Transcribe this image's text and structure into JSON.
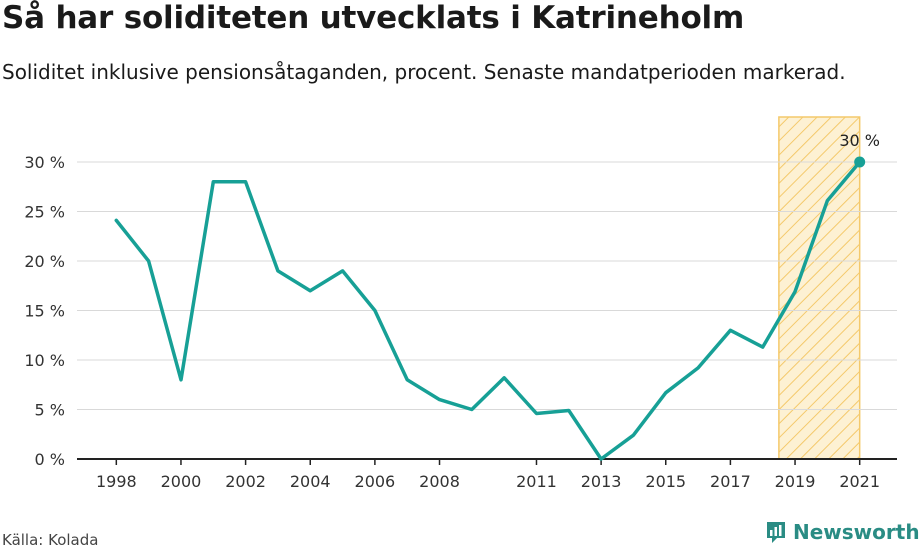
{
  "title": "Så har soliditeten utvecklats i Katrineholm",
  "subtitle": "Soliditet inklusive pensionsåtaganden, procent. Senaste mandatperioden markerad.",
  "source": "Källa: Kolada",
  "brand": "Newsworthy",
  "colors": {
    "line": "#17a096",
    "highlight_fill": "#fbe7b4",
    "highlight_stroke": "#f4c96b",
    "grid": "#d9d9d9",
    "axis": "#222222",
    "brand": "#2a8c84"
  },
  "chart_data": {
    "type": "line",
    "title": "Så har soliditeten utvecklats i Katrineholm",
    "subtitle": "Soliditet inklusive pensionsåtaganden, procent. Senaste mandatperioden markerad.",
    "x": [
      1998,
      1999,
      2000,
      2001,
      2002,
      2003,
      2004,
      2005,
      2006,
      2007,
      2008,
      2009,
      2010,
      2011,
      2012,
      2013,
      2014,
      2015,
      2016,
      2017,
      2018,
      2019,
      2020,
      2021
    ],
    "series": [
      {
        "values": [
          24.1,
          20.0,
          8.0,
          28.0,
          28.0,
          19.0,
          17.0,
          19.0,
          15.0,
          8.0,
          6.0,
          5.0,
          8.2,
          4.6,
          4.9,
          0.0,
          2.4,
          6.7,
          9.2,
          13.0,
          11.3,
          16.9,
          26.1,
          30.0
        ]
      }
    ],
    "x_tick_labels": [
      "1998",
      "2000",
      "2002",
      "2004",
      "2006",
      "2008",
      "2011",
      "2013",
      "2015",
      "2017",
      "2019",
      "2021"
    ],
    "y_ticks": [
      0,
      5,
      10,
      15,
      20,
      25,
      30
    ],
    "y_tick_labels": [
      "0 %",
      "5 %",
      "10 %",
      "15 %",
      "20 %",
      "25 %",
      "30 %"
    ],
    "ylim": [
      0,
      30
    ],
    "xlim": [
      1997,
      2022
    ],
    "highlight_range": [
      2018.5,
      2021
    ],
    "last_point_label": "30 %",
    "grid": true
  }
}
